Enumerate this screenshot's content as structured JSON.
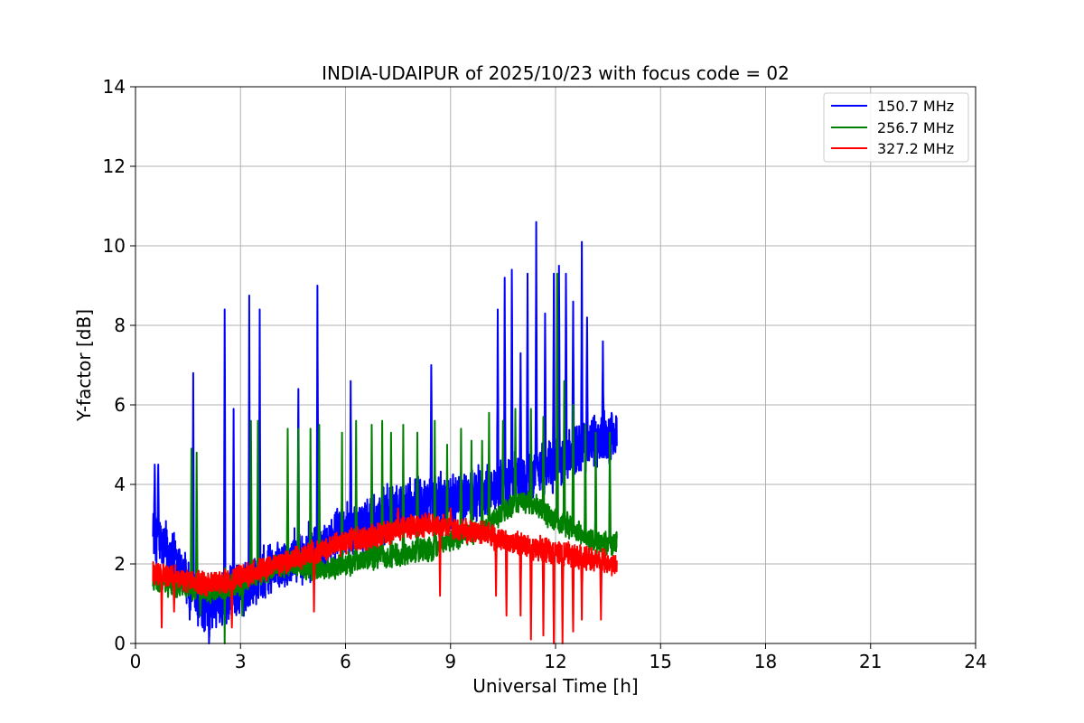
{
  "chart_data": {
    "type": "line",
    "title": "INDIA-UDAIPUR of 2025/10/23 with focus code = 02",
    "xlabel": "Universal Time [h]",
    "ylabel": "Y-factor [dB]",
    "xlim": [
      0,
      24
    ],
    "ylim": [
      0,
      14
    ],
    "xticks": [
      0,
      3,
      6,
      9,
      12,
      15,
      18,
      21,
      24
    ],
    "yticks": [
      0,
      2,
      4,
      6,
      8,
      10,
      12,
      14
    ],
    "grid": true,
    "legend_position": "top-right",
    "data_time_range": [
      0.5,
      13.75
    ],
    "series": [
      {
        "name": "150.7 MHz",
        "color": "#0000ff",
        "baseline": [
          [
            0.5,
            3.0
          ],
          [
            0.6,
            2.6
          ],
          [
            0.9,
            2.4
          ],
          [
            1.2,
            2.0
          ],
          [
            1.5,
            1.5
          ],
          [
            1.8,
            1.0
          ],
          [
            2.1,
            0.9
          ],
          [
            2.5,
            1.1
          ],
          [
            3.0,
            1.3
          ],
          [
            3.5,
            1.6
          ],
          [
            4.0,
            1.9
          ],
          [
            4.5,
            2.1
          ],
          [
            5.0,
            2.3
          ],
          [
            5.5,
            2.6
          ],
          [
            6.0,
            2.8
          ],
          [
            6.5,
            3.0
          ],
          [
            7.0,
            3.2
          ],
          [
            7.5,
            3.4
          ],
          [
            8.0,
            3.5
          ],
          [
            8.5,
            3.6
          ],
          [
            9.0,
            3.6
          ],
          [
            9.5,
            3.7
          ],
          [
            10.0,
            3.8
          ],
          [
            10.5,
            4.0
          ],
          [
            11.0,
            4.1
          ],
          [
            11.5,
            4.3
          ],
          [
            12.0,
            4.5
          ],
          [
            12.5,
            4.8
          ],
          [
            13.0,
            5.0
          ],
          [
            13.5,
            5.2
          ],
          [
            13.75,
            5.3
          ]
        ],
        "noise": 0.8,
        "spikes": [
          [
            0.55,
            4.5
          ],
          [
            0.65,
            4.5
          ],
          [
            1.65,
            6.8
          ],
          [
            2.55,
            8.4
          ],
          [
            2.8,
            5.9
          ],
          [
            3.25,
            8.75
          ],
          [
            3.55,
            8.4
          ],
          [
            4.65,
            6.4
          ],
          [
            5.2,
            9.0
          ],
          [
            6.15,
            6.6
          ],
          [
            8.45,
            7.0
          ],
          [
            10.35,
            8.4
          ],
          [
            10.55,
            9.2
          ],
          [
            10.75,
            9.4
          ],
          [
            11.0,
            7.3
          ],
          [
            11.2,
            9.3
          ],
          [
            11.45,
            10.6
          ],
          [
            11.7,
            8.3
          ],
          [
            11.95,
            9.3
          ],
          [
            12.1,
            9.5
          ],
          [
            12.3,
            9.3
          ],
          [
            12.5,
            8.6
          ],
          [
            12.75,
            10.1
          ],
          [
            12.9,
            8.2
          ],
          [
            13.35,
            7.6
          ],
          [
            13.6,
            5.8
          ]
        ],
        "dips": [
          [
            1.55,
            0.6
          ],
          [
            2.1,
            0.0
          ],
          [
            2.6,
            0.5
          ]
        ]
      },
      {
        "name": "256.7 MHz",
        "color": "#008000",
        "baseline": [
          [
            0.5,
            1.6
          ],
          [
            1.0,
            1.5
          ],
          [
            1.5,
            1.4
          ],
          [
            2.0,
            1.3
          ],
          [
            2.5,
            1.4
          ],
          [
            3.0,
            1.5
          ],
          [
            3.5,
            1.7
          ],
          [
            4.0,
            1.9
          ],
          [
            4.5,
            2.0
          ],
          [
            5.0,
            1.9
          ],
          [
            5.5,
            1.9
          ],
          [
            6.0,
            2.0
          ],
          [
            6.5,
            2.1
          ],
          [
            7.0,
            2.2
          ],
          [
            7.5,
            2.2
          ],
          [
            8.0,
            2.3
          ],
          [
            8.5,
            2.4
          ],
          [
            9.0,
            2.6
          ],
          [
            9.5,
            2.7
          ],
          [
            10.0,
            2.9
          ],
          [
            10.5,
            3.3
          ],
          [
            11.0,
            3.6
          ],
          [
            11.5,
            3.4
          ],
          [
            12.0,
            3.1
          ],
          [
            12.5,
            2.9
          ],
          [
            13.0,
            2.6
          ],
          [
            13.5,
            2.5
          ],
          [
            13.75,
            2.5
          ]
        ],
        "noise": 0.35,
        "spikes": [
          [
            1.6,
            4.9
          ],
          [
            1.75,
            4.8
          ],
          [
            2.55,
            5.0
          ],
          [
            3.3,
            5.6
          ],
          [
            3.5,
            5.6
          ],
          [
            4.35,
            5.4
          ],
          [
            4.65,
            5.4
          ],
          [
            5.0,
            5.4
          ],
          [
            5.25,
            5.5
          ],
          [
            5.9,
            5.3
          ],
          [
            6.3,
            5.6
          ],
          [
            6.75,
            5.5
          ],
          [
            7.05,
            5.6
          ],
          [
            7.3,
            5.3
          ],
          [
            7.65,
            5.5
          ],
          [
            8.05,
            5.3
          ],
          [
            8.55,
            5.6
          ],
          [
            8.9,
            5.0
          ],
          [
            9.3,
            5.4
          ],
          [
            9.6,
            5.1
          ],
          [
            9.9,
            5.1
          ],
          [
            10.1,
            5.8
          ],
          [
            10.5,
            5.6
          ],
          [
            10.85,
            5.9
          ],
          [
            11.3,
            5.9
          ],
          [
            11.65,
            5.7
          ],
          [
            12.05,
            9.3
          ],
          [
            12.25,
            6.6
          ],
          [
            12.5,
            6.0
          ],
          [
            12.85,
            5.5
          ],
          [
            13.15,
            5.3
          ],
          [
            13.55,
            5.3
          ]
        ],
        "dips": [
          [
            2.55,
            0.0
          ],
          [
            1.85,
            0.7
          ],
          [
            3.05,
            0.7
          ]
        ]
      },
      {
        "name": "327.2 MHz",
        "color": "#ff0000",
        "baseline": [
          [
            0.5,
            1.75
          ],
          [
            1.0,
            1.7
          ],
          [
            1.5,
            1.6
          ],
          [
            2.0,
            1.5
          ],
          [
            2.5,
            1.55
          ],
          [
            3.0,
            1.65
          ],
          [
            3.5,
            1.8
          ],
          [
            4.0,
            2.0
          ],
          [
            4.5,
            2.1
          ],
          [
            5.0,
            2.25
          ],
          [
            5.5,
            2.4
          ],
          [
            6.0,
            2.55
          ],
          [
            6.5,
            2.65
          ],
          [
            7.0,
            2.75
          ],
          [
            7.5,
            2.85
          ],
          [
            8.0,
            2.95
          ],
          [
            8.5,
            3.0
          ],
          [
            9.0,
            2.9
          ],
          [
            9.5,
            2.85
          ],
          [
            10.0,
            2.75
          ],
          [
            10.5,
            2.6
          ],
          [
            11.0,
            2.5
          ],
          [
            11.5,
            2.4
          ],
          [
            12.0,
            2.3
          ],
          [
            12.5,
            2.2
          ],
          [
            13.0,
            2.15
          ],
          [
            13.5,
            2.05
          ],
          [
            13.75,
            2.0
          ]
        ],
        "noise": 0.35,
        "spikes": [
          [
            7.5,
            3.4
          ],
          [
            9.0,
            3.4
          ]
        ],
        "dips": [
          [
            0.75,
            0.4
          ],
          [
            1.1,
            0.8
          ],
          [
            2.75,
            0.4
          ],
          [
            5.1,
            0.8
          ],
          [
            8.7,
            1.2
          ],
          [
            10.3,
            1.2
          ],
          [
            10.6,
            0.7
          ],
          [
            11.0,
            0.7
          ],
          [
            11.3,
            0.1
          ],
          [
            11.65,
            0.2
          ],
          [
            11.95,
            0.0
          ],
          [
            12.2,
            0.0
          ],
          [
            12.5,
            0.3
          ],
          [
            12.75,
            0.6
          ],
          [
            13.3,
            0.6
          ]
        ]
      }
    ]
  }
}
